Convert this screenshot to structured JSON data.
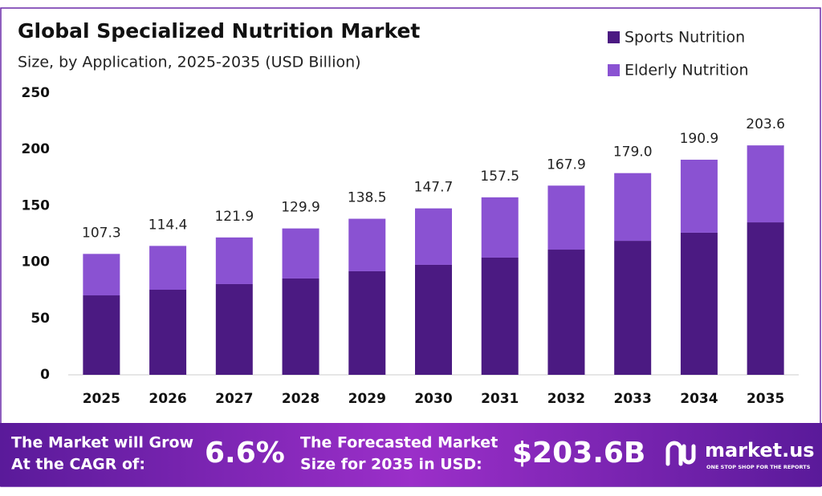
{
  "chart_data": {
    "type": "stacked-bar",
    "title": "Global Specialized Nutrition Market",
    "subtitle": "Size, by Application, 2025-2035 (USD Billion)",
    "categories": [
      "2025",
      "2026",
      "2027",
      "2028",
      "2029",
      "2030",
      "2031",
      "2032",
      "2033",
      "2034",
      "2035"
    ],
    "series": [
      {
        "name": "Sports Nutrition",
        "color": "#4b1a82",
        "values": [
          70.5,
          75.5,
          80.5,
          85.5,
          91.9,
          97.6,
          104.0,
          111.1,
          118.9,
          126.1,
          135.3
        ]
      },
      {
        "name": "Elderly Nutrition",
        "color": "#8a52d2",
        "values": [
          36.8,
          38.9,
          41.4,
          44.4,
          46.6,
          50.1,
          53.5,
          56.8,
          60.1,
          64.8,
          68.3
        ]
      }
    ],
    "totals": {
      "values": [
        107.3,
        114.4,
        121.9,
        129.9,
        138.5,
        147.7,
        157.5,
        167.9,
        179.0,
        190.9,
        203.6
      ],
      "value_labels": [
        "107.3",
        "114.4",
        "121.9",
        "129.9",
        "138.5",
        "147.7",
        "157.5",
        "167.9",
        "179.0",
        "190.9",
        "203.6"
      ]
    },
    "ylim": [
      0,
      250
    ],
    "yticks": [
      0,
      50,
      100,
      150,
      200,
      250
    ],
    "grid": false,
    "legend": "top-right"
  },
  "footer": {
    "cagr_label": [
      "The Market will Grow",
      "At the CAGR of:"
    ],
    "cagr": "6.6%",
    "forecast_label": [
      "The Forecasted Market",
      "Size for 2035 in USD:"
    ],
    "forecast": "$203.6B",
    "brand": "market.us",
    "tagline": "ONE STOP SHOP FOR THE REPORTS"
  }
}
